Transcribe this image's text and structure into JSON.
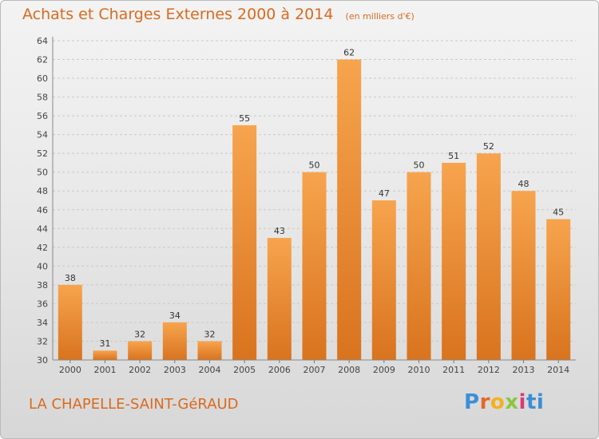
{
  "header": {
    "title": "Achats et Charges Externes 2000 à 2014",
    "subtitle": "(en milliers d'€)"
  },
  "footer": {
    "commune": "LA CHAPELLE-SAINT-GéRAUD",
    "logo_text": "Proxiti"
  },
  "colors": {
    "accent": "#d96a1e",
    "bar_light": "#f7a44e",
    "bar_dark": "#d9731e"
  },
  "chart_data": {
    "type": "bar",
    "categories": [
      "2000",
      "2001",
      "2002",
      "2003",
      "2004",
      "2005",
      "2006",
      "2007",
      "2008",
      "2009",
      "2010",
      "2011",
      "2012",
      "2013",
      "2014"
    ],
    "values": [
      38,
      31,
      32,
      34,
      32,
      55,
      43,
      50,
      62,
      47,
      50,
      51,
      52,
      48,
      45
    ],
    "title": "Achats et Charges Externes 2000 à 2014",
    "subtitle": "(en milliers d'€)",
    "xlabel": "",
    "ylabel": "",
    "ylim": [
      30,
      64
    ],
    "ytick_step": 2,
    "grid": true,
    "data_labels": true
  }
}
